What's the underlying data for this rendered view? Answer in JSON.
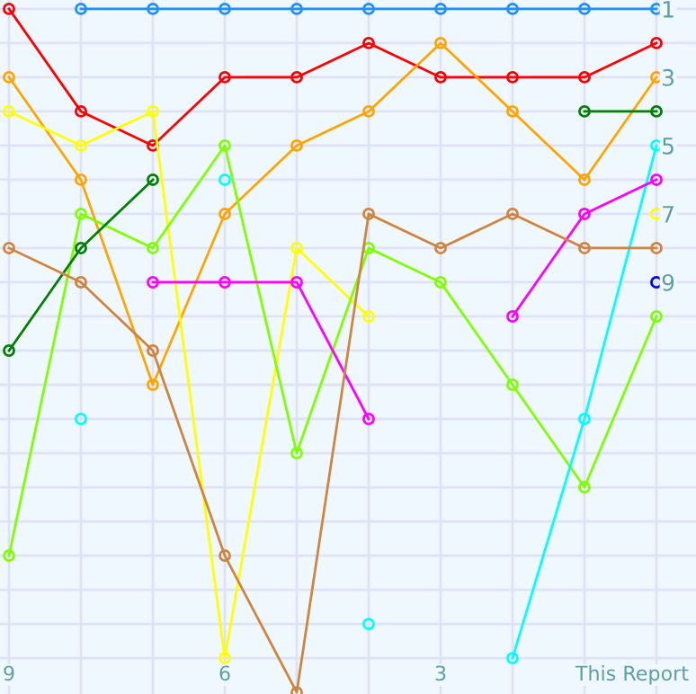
{
  "chart_data": {
    "type": "line",
    "marker": "circle",
    "line_style": "solid",
    "grid": true,
    "categories": [
      "9",
      null,
      null,
      "6",
      null,
      null,
      "3",
      null,
      null,
      "This Report"
    ],
    "ylim": [
      21.05,
      0.74
    ],
    "yticks": [
      1,
      {
        "value": 2,
        "label": null
      },
      3,
      {
        "value": 4,
        "label": null
      },
      5,
      {
        "value": 6,
        "label": null
      },
      7,
      {
        "value": 8,
        "label": null
      },
      9,
      {
        "value": 10,
        "label": null
      },
      {
        "value": 11,
        "label": null
      },
      {
        "value": 12,
        "label": null
      },
      {
        "value": 13,
        "label": null
      },
      {
        "value": 14,
        "label": null
      },
      {
        "value": 15,
        "label": null
      },
      {
        "value": 16,
        "label": null
      },
      {
        "value": 17,
        "label": null
      },
      {
        "value": 18,
        "label": null
      },
      {
        "value": 19,
        "label": null
      },
      {
        "value": 20,
        "label": null
      }
    ],
    "series": [
      {
        "color": "#1e90ff",
        "values": [
          null,
          1,
          1,
          1,
          1,
          1,
          1,
          1,
          1,
          1
        ]
      },
      {
        "color": "#ff0000",
        "values": [
          1,
          4,
          5,
          3,
          3,
          2,
          3,
          3,
          3,
          2
        ]
      },
      {
        "color": "#ffa500",
        "values": [
          3,
          6,
          12,
          7,
          5,
          4,
          2,
          4,
          6,
          3
        ]
      },
      {
        "color": "#ffff00",
        "values": [
          4,
          5,
          4,
          20,
          8,
          10,
          null,
          null,
          null,
          7
        ]
      },
      {
        "color": "#7fff00",
        "values": [
          17,
          7,
          8,
          5,
          14,
          8,
          9,
          12,
          15,
          10
        ]
      },
      {
        "color": "#008000",
        "values": [
          11,
          8,
          6,
          null,
          null,
          null,
          null,
          null,
          4,
          4
        ]
      },
      {
        "color": "#00ffff",
        "values": [
          null,
          13,
          null,
          6,
          null,
          19,
          null,
          20,
          13,
          5
        ]
      },
      {
        "color": "#ff00ff",
        "values": [
          null,
          null,
          9,
          9,
          9,
          13,
          null,
          10,
          7,
          6
        ]
      },
      {
        "color": "#cd853f",
        "values": [
          8,
          9,
          11,
          17,
          21,
          7,
          8,
          7,
          8,
          8
        ]
      },
      {
        "color": "#0000ff",
        "values": [
          null,
          null,
          null,
          null,
          null,
          null,
          null,
          null,
          null,
          9
        ]
      }
    ]
  }
}
